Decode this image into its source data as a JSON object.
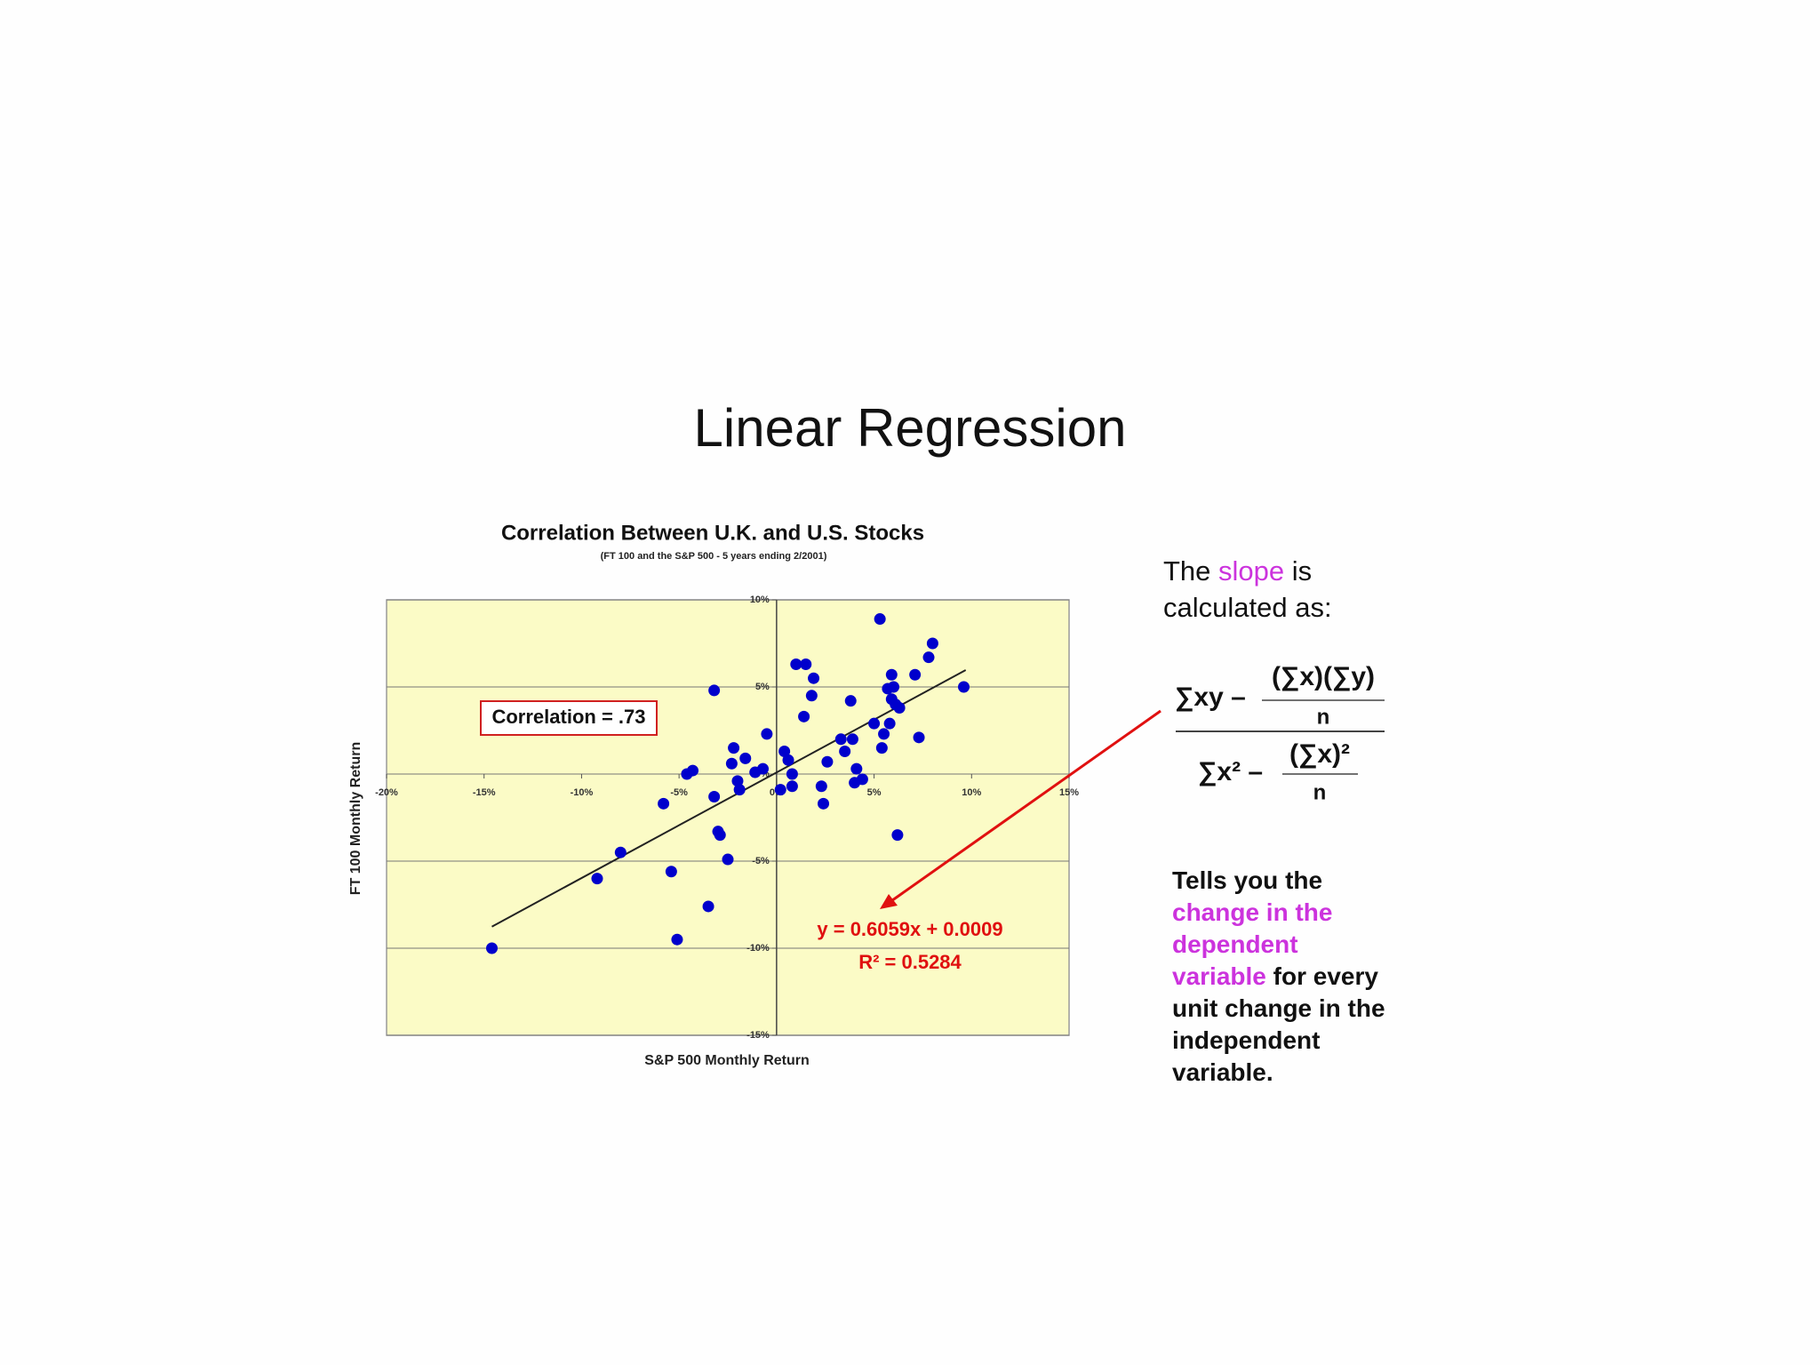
{
  "title": "Linear Regression",
  "chart_data": {
    "type": "scatter",
    "title": "Correlation Between U.K. and U.S. Stocks",
    "subtitle": "(FT 100 and the S&P 500 - 5 years ending 2/2001)",
    "x_label": "S&P 500 Monthly Return",
    "y_label": "FT 100 Monthly Return",
    "annotation": "Correlation = .73",
    "color": "#0000cc",
    "plot_background": "#fbfbc6",
    "grid": true,
    "x": [
      -14.6,
      -9.2,
      -8.0,
      -5.4,
      -5.1,
      -3.5,
      -5.8,
      -4.6,
      -4.3,
      -3.2,
      -3.2,
      -3.0,
      -2.9,
      -2.5,
      -2.2,
      -2.3,
      -1.9,
      -2.0,
      -1.6,
      -1.1,
      -0.7,
      -0.5,
      0.2,
      0.4,
      0.6,
      0.8,
      0.8,
      1.0,
      1.5,
      1.9,
      1.8,
      1.4,
      2.3,
      2.4,
      2.6,
      3.3,
      3.5,
      3.8,
      3.9,
      4.1,
      4.0,
      4.4,
      5.0,
      5.3,
      5.4,
      5.5,
      5.8,
      5.7,
      5.9,
      6.0,
      5.9,
      6.1,
      6.3,
      6.2,
      7.1,
      7.3,
      7.8,
      8.0,
      9.6
    ],
    "y": [
      -10.0,
      -6.0,
      -4.5,
      -5.6,
      -9.5,
      -7.6,
      -1.7,
      0.0,
      0.2,
      4.8,
      -1.3,
      -3.3,
      -3.5,
      -4.9,
      1.5,
      0.6,
      -0.9,
      -0.4,
      0.9,
      0.1,
      0.3,
      2.3,
      -0.9,
      1.3,
      0.8,
      0.0,
      -0.7,
      6.3,
      6.3,
      5.5,
      4.5,
      3.3,
      -0.7,
      -1.7,
      0.7,
      2.0,
      1.3,
      4.2,
      2.0,
      0.3,
      -0.5,
      -0.3,
      2.9,
      8.9,
      1.5,
      2.3,
      2.9,
      4.9,
      5.7,
      5.0,
      4.3,
      4.0,
      3.8,
      -3.5,
      5.7,
      2.1,
      6.7,
      7.5,
      5.0
    ],
    "trendline": {
      "x": [
        -14.6,
        9.7
      ],
      "y": [
        -8.76,
        5.97
      ],
      "color": "#222222",
      "equation": "y = 0.6059x + 0.0009",
      "r_squared": "R² = 0.5284",
      "label_color": "#e01010"
    },
    "xlim": [
      -20,
      15
    ],
    "ylim": [
      -15,
      10
    ],
    "xticks": [
      {
        "value": -20,
        "label": "-20%"
      },
      {
        "value": -15,
        "label": "-15%"
      },
      {
        "value": -10,
        "label": "-10%"
      },
      {
        "value": -5,
        "label": "-5%"
      },
      {
        "value": 0,
        "label": "0%"
      },
      {
        "value": 5,
        "label": "5%"
      },
      {
        "value": 10,
        "label": "10%"
      },
      {
        "value": 15,
        "label": "15%"
      }
    ],
    "yticks": [
      {
        "value": -15,
        "label": "-15%"
      },
      {
        "value": -10,
        "label": "-10%"
      },
      {
        "value": -5,
        "label": "-5%"
      },
      {
        "value": 0,
        "label": "0%"
      },
      {
        "value": 5,
        "label": "5%"
      },
      {
        "value": 10,
        "label": "10%"
      }
    ]
  },
  "highlight_color": "#cc33dd",
  "slope_text": [
    [
      {
        "text": "The "
      },
      {
        "text": "slope",
        "highlight": true
      },
      {
        "text": " is"
      }
    ],
    [
      {
        "text": "calculated as:"
      }
    ]
  ],
  "formula": {
    "num_left": "∑xy –",
    "num_frac_top": "(∑x)(∑y)",
    "num_frac_bottom": "n",
    "den_left": "∑x² –",
    "den_frac_top": "(∑x)²",
    "den_frac_bottom": "n"
  },
  "explanation": [
    [
      {
        "text": "Tells you the"
      }
    ],
    [
      {
        "text": "change in the",
        "highlight": true
      }
    ],
    [
      {
        "text": "dependent",
        "highlight": true
      }
    ],
    [
      {
        "text": "variable",
        "highlight": true
      },
      {
        "text": " for every"
      }
    ],
    [
      {
        "text": "unit change in the"
      }
    ],
    [
      {
        "text": "independent"
      }
    ],
    [
      {
        "text": "variable."
      }
    ]
  ]
}
